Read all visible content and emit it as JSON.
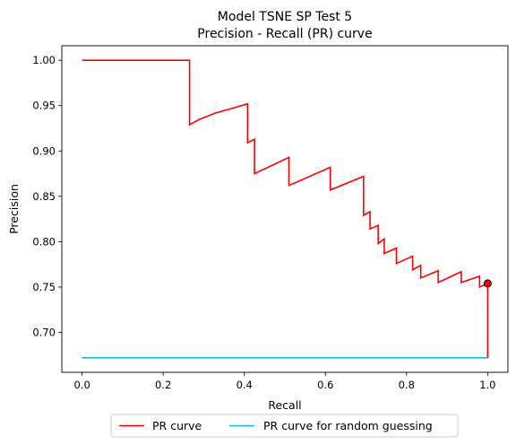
{
  "chart_data": {
    "type": "line",
    "title_line1": "Model TSNE SP Test 5",
    "title_line2": "Precision - Recall (PR) curve",
    "xlabel": "Recall",
    "ylabel": "Precision",
    "xlim": [
      -0.05,
      1.05
    ],
    "ylim": [
      0.656,
      1.016
    ],
    "xticks": [
      0.0,
      0.2,
      0.4,
      0.6,
      0.8,
      1.0
    ],
    "xtick_labels": [
      "0.0",
      "0.2",
      "0.4",
      "0.6",
      "0.8",
      "1.0"
    ],
    "yticks": [
      0.7,
      0.75,
      0.8,
      0.85,
      0.9,
      0.95,
      1.0
    ],
    "ytick_labels": [
      "0.70",
      "0.75",
      "0.80",
      "0.85",
      "0.90",
      "0.95",
      "1.00"
    ],
    "legend_position": "below plot, centered",
    "series": [
      {
        "name": "PR curve",
        "color": "#ff0000",
        "points": [
          [
            0.0,
            1.0
          ],
          [
            0.265,
            1.0
          ],
          [
            0.265,
            0.929
          ],
          [
            0.29,
            0.935
          ],
          [
            0.33,
            0.942
          ],
          [
            0.37,
            0.947
          ],
          [
            0.408,
            0.952
          ],
          [
            0.408,
            0.909
          ],
          [
            0.425,
            0.913
          ],
          [
            0.425,
            0.875
          ],
          [
            0.51,
            0.893
          ],
          [
            0.51,
            0.862
          ],
          [
            0.612,
            0.882
          ],
          [
            0.612,
            0.857
          ],
          [
            0.694,
            0.872
          ],
          [
            0.694,
            0.829
          ],
          [
            0.71,
            0.833
          ],
          [
            0.71,
            0.814
          ],
          [
            0.73,
            0.818
          ],
          [
            0.73,
            0.798
          ],
          [
            0.745,
            0.803
          ],
          [
            0.745,
            0.787
          ],
          [
            0.775,
            0.793
          ],
          [
            0.775,
            0.776
          ],
          [
            0.815,
            0.784
          ],
          [
            0.815,
            0.769
          ],
          [
            0.835,
            0.774
          ],
          [
            0.835,
            0.76
          ],
          [
            0.878,
            0.768
          ],
          [
            0.878,
            0.755
          ],
          [
            0.935,
            0.767
          ],
          [
            0.935,
            0.755
          ],
          [
            0.98,
            0.762
          ],
          [
            0.98,
            0.75
          ],
          [
            0.99,
            0.752
          ],
          [
            1.0,
            0.754
          ],
          [
            1.0,
            0.672
          ]
        ]
      },
      {
        "name": "PR curve for random guessing",
        "color": "#17becf",
        "points": [
          [
            0.0,
            0.672
          ],
          [
            1.0,
            0.672
          ]
        ]
      }
    ],
    "marker": {
      "x": 1.0,
      "y": 0.754,
      "fill": "#ff0000",
      "edge": "#000000"
    }
  }
}
